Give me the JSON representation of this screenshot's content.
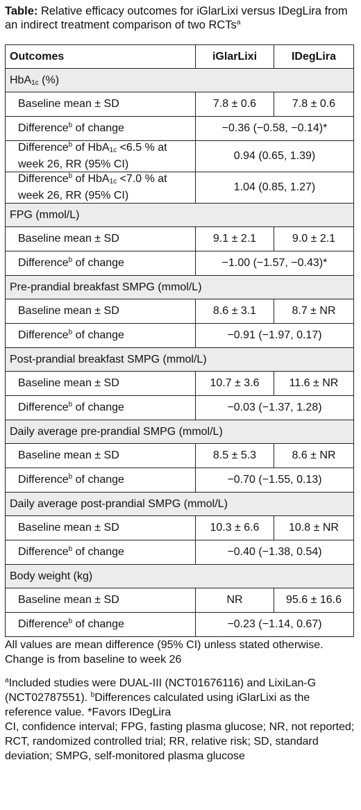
{
  "title": {
    "bold": "Table:",
    "rest": " Relative efficacy outcomes for iGlarLixi versus IDegLira from an indirect treatment comparison of two RCTs",
    "sup": "a"
  },
  "headers": {
    "outcomes": "Outcomes",
    "col1": "iGlarLixi",
    "col2": "IDegLira"
  },
  "sections": [
    {
      "label": "HbA",
      "label_sub": "1c",
      "label_after": " (%)",
      "rows": [
        {
          "label": "Baseline mean ± SD",
          "v1": "7.8 ± 0.6",
          "v2": "7.8 ± 0.6"
        },
        {
          "label": "Difference",
          "sup": "b",
          "label_after": " of change",
          "merged": "−0.36 (−0.58, −0.14)*"
        },
        {
          "label": "Difference",
          "sup": "b",
          "label_after": " of HbA",
          "sub": "1c",
          "label_after2": " <6.5 % at week 26, RR (95% CI)",
          "merged": "0.94 (0.65, 1.39)"
        },
        {
          "label": "Difference",
          "sup": "b",
          "label_after": " of HbA",
          "sub": "1c",
          "label_after2": " <7.0 % at week 26, RR (95% CI)",
          "merged": "1.04 (0.85, 1.27)"
        }
      ]
    },
    {
      "label": "FPG (mmol/L)",
      "rows": [
        {
          "label": "Baseline mean ± SD",
          "v1": "9.1 ± 2.1",
          "v2": "9.0 ± 2.1"
        },
        {
          "label": "Difference",
          "sup": "b",
          "label_after": " of change",
          "merged": "−1.00 (−1.57, −0.43)*"
        }
      ]
    },
    {
      "label": "Pre-prandial breakfast SMPG (mmol/L)",
      "rows": [
        {
          "label": "Baseline mean ± SD",
          "v1": "8.6 ± 3.1",
          "v2": "8.7 ± NR"
        },
        {
          "label": "Difference",
          "sup": "b",
          "label_after": " of change",
          "merged": "−0.91 (−1.97, 0.17)"
        }
      ]
    },
    {
      "label": "Post-prandial breakfast SMPG (mmol/L)",
      "rows": [
        {
          "label": "Baseline mean ± SD",
          "v1": "10.7 ± 3.6",
          "v2": "11.6 ± NR"
        },
        {
          "label": "Difference",
          "sup": "b",
          "label_after": " of change",
          "merged": "−0.03 (−1.37, 1.28)"
        }
      ]
    },
    {
      "label": "Daily average pre-prandial SMPG (mmol/L)",
      "rows": [
        {
          "label": "Baseline mean ± SD",
          "v1": "8.5 ± 5.3",
          "v2": "8.6 ± NR"
        },
        {
          "label": "Difference",
          "sup": "b",
          "label_after": " of change",
          "merged": "−0.70 (−1.55, 0.13)"
        }
      ]
    },
    {
      "label": "Daily average post-prandial SMPG (mmol/L)",
      "rows": [
        {
          "label": "Baseline mean ± SD",
          "v1": "10.3 ± 6.6",
          "v2": "10.8 ± NR"
        },
        {
          "label": "Difference",
          "sup": "b",
          "label_after": " of change",
          "merged": "−0.40 (−1.38, 0.54)"
        }
      ]
    },
    {
      "label": "Body weight (kg)",
      "rows": [
        {
          "label": "Baseline mean ± SD",
          "v1": "NR",
          "v2": "95.6 ± 16.6"
        },
        {
          "label": "Difference",
          "sup": "b",
          "label_after": " of change",
          "merged": "−0.23 (−1.14, 0.67)"
        }
      ]
    }
  ],
  "notes": {
    "line1": "All values are mean difference (95% CI) unless stated otherwise. Change is from baseline to week 26",
    "fn_a_sup": "a",
    "fn_a": "Included studies were DUAL-III (NCT01676116) and LixiLan-G (NCT02787551). ",
    "fn_b_sup": "b",
    "fn_b": "Differences calculated using iGlarLixi as the reference value. *Favors IDegLira",
    "abbrev": "CI, confidence interval; FPG, fasting plasma glucose; NR, not reported; RCT, randomized controlled trial; RR, relative risk; SD, standard deviation; SMPG, self-monitored plasma glucose"
  }
}
